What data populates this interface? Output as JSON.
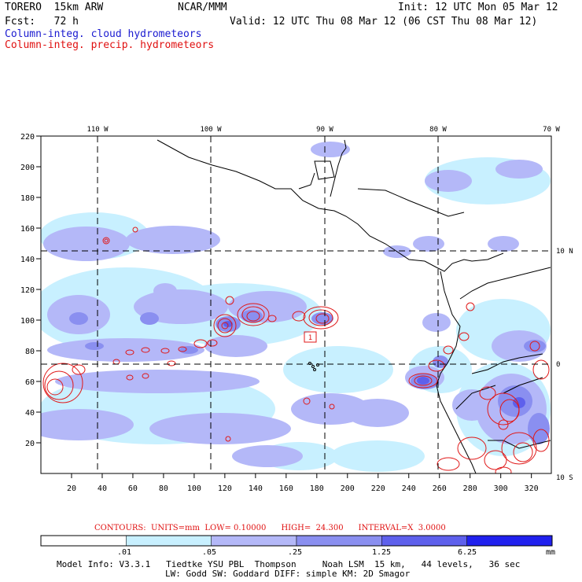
{
  "header": {
    "model": "TORERO  15km ARW",
    "center": "NCAR/MMM",
    "init": "Init: 12 UTC Mon 05 Mar 12",
    "fcst": "Fcst:   72 h",
    "valid": "Valid: 12 UTC Thu 08 Mar 12 (06 CST Thu 08 Mar 12)",
    "field_cloud": "Column-integ. cloud hydrometeors",
    "field_precip": "Column-integ. precip. hydrometeors"
  },
  "map": {
    "lon_labels": [
      "110 W",
      "100 W",
      "90 W",
      "80 W",
      "70 W"
    ],
    "lat_labels_right": [
      "10 N",
      "0",
      "10 S"
    ],
    "x_ticks": [
      "20",
      "40",
      "60",
      "80",
      "100",
      "120",
      "140",
      "160",
      "180",
      "200",
      "220",
      "240",
      "260",
      "280",
      "300",
      "320"
    ],
    "y_ticks": [
      "20",
      "40",
      "60",
      "80",
      "100",
      "120",
      "140",
      "160",
      "180",
      "200",
      "220"
    ],
    "station_marker": "1",
    "colors": {
      "cloud_shade_1": "#c8f0ff",
      "cloud_shade_2": "#b4b8f8",
      "cloud_shade_3": "#8a8ff0",
      "cloud_shade_4": "#5e60ec",
      "contour": "#e01818",
      "coast": "#000000"
    }
  },
  "contours_info": "CONTOURS:  UNITS=mm  LOW= 0.10000      HIGH=  24.300      INTERVAL=X  3.0000",
  "colorbar": {
    "labels": [
      ".01",
      ".05",
      ".25",
      "1.25",
      "6.25"
    ],
    "unit": "mm",
    "colors": [
      "#ffffff",
      "#c8f0ff",
      "#b4b8f8",
      "#8a8ff0",
      "#5e60ec",
      "#2020ee"
    ]
  },
  "footer": {
    "line1": "Model Info: V3.3.1   Tiedtke YSU PBL  Thompson     Noah LSM  15 km,   44 levels,   36 sec",
    "line2": "LW: Godd SW: Goddard DIFF: simple KM: 2D Smagor"
  }
}
